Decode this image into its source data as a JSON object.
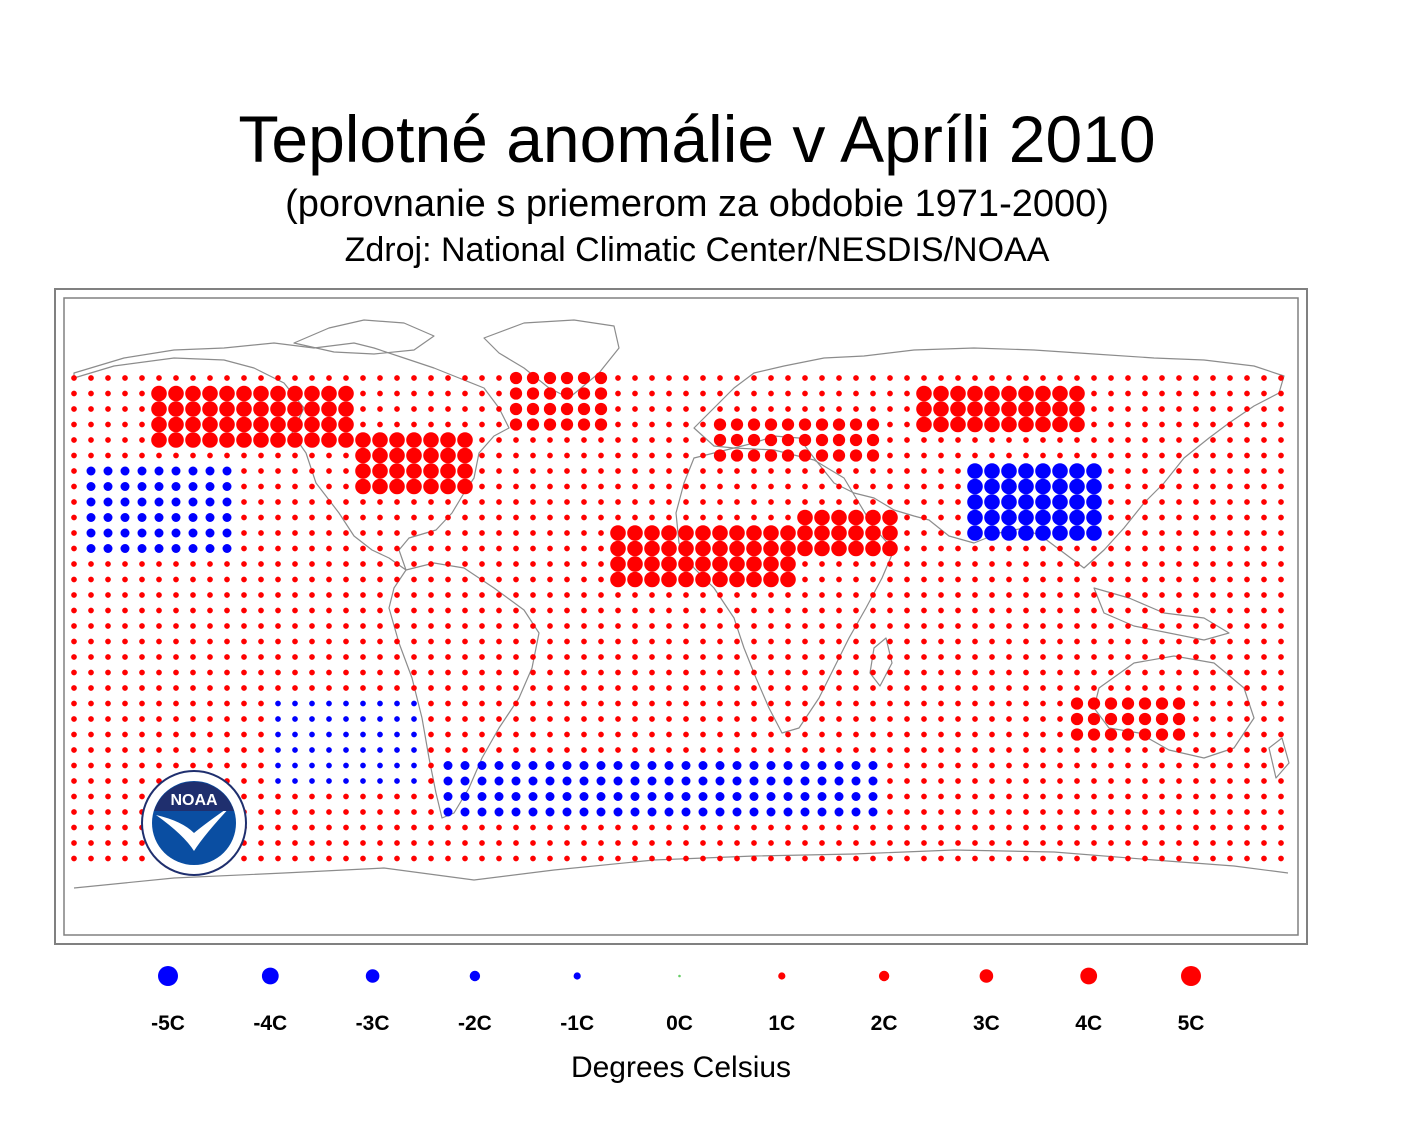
{
  "header": {
    "title": "Teplotné anomálie v Apríli 2010",
    "subtitle": "(porovnanie s priemerom za obdobie 1971-2000)",
    "source": "Zdroj: National Climatic Center/NESDIS/NOAA"
  },
  "logo": {
    "text": "NOAA"
  },
  "legend": {
    "items": [
      {
        "label": "-5C",
        "value": -5
      },
      {
        "label": "-4C",
        "value": -4
      },
      {
        "label": "-3C",
        "value": -3
      },
      {
        "label": "-2C",
        "value": -2
      },
      {
        "label": "-1C",
        "value": -1
      },
      {
        "label": "0C",
        "value": 0
      },
      {
        "label": "1C",
        "value": 1
      },
      {
        "label": "2C",
        "value": 2
      },
      {
        "label": "3C",
        "value": 3
      },
      {
        "label": "4C",
        "value": 4
      },
      {
        "label": "5C",
        "value": 5
      }
    ],
    "xlabel": "Degrees Celsius"
  },
  "colors": {
    "warm": "#ff0000",
    "cold": "#0000ff",
    "neutral": "#66cc66",
    "coastline": "#8c8c8c",
    "frame": "#808080",
    "noaa_blue": "#0a4ea2",
    "noaa_navy": "#1f2f6e"
  },
  "map_data": {
    "grid": {
      "lon_start": -177.5,
      "lon_step": 5,
      "lat_start": 82.5,
      "lat_step": -5,
      "lon_count": 72,
      "lat_count": 32
    },
    "background": {
      "value": 1
    },
    "regions": [
      {
        "name": "canada-north",
        "lon": [
          -155,
          -95
        ],
        "lat": [
          60,
          78
        ],
        "value": 4
      },
      {
        "name": "canada-east",
        "lon": [
          -95,
          -60
        ],
        "lat": [
          45,
          65
        ],
        "value": 4
      },
      {
        "name": "greenland",
        "lon": [
          -50,
          -20
        ],
        "lat": [
          65,
          85
        ],
        "value": 3
      },
      {
        "name": "northern-europe",
        "lon": [
          10,
          60
        ],
        "lat": [
          55,
          72
        ],
        "value": 3
      },
      {
        "name": "siberia-north",
        "lon": [
          70,
          120
        ],
        "lat": [
          65,
          80
        ],
        "value": 4
      },
      {
        "name": "north-africa",
        "lon": [
          -20,
          35
        ],
        "lat": [
          15,
          35
        ],
        "value": 4
      },
      {
        "name": "middle-east",
        "lon": [
          35,
          65
        ],
        "lat": [
          25,
          40
        ],
        "value": 4
      },
      {
        "name": "australia",
        "lon": [
          115,
          150
        ],
        "lat": [
          -35,
          -20
        ],
        "value": 3
      },
      {
        "name": "central-asia-cold",
        "lon": [
          85,
          125
        ],
        "lat": [
          30,
          55
        ],
        "value": -4
      },
      {
        "name": "pacific-cold",
        "lon": [
          -175,
          -130
        ],
        "lat": [
          25,
          55
        ],
        "value": -2
      },
      {
        "name": "south-atlantic-cold",
        "lon": [
          -70,
          60
        ],
        "lat": [
          -62,
          -42
        ],
        "value": -2
      },
      {
        "name": "southeast-pacific-cold",
        "lon": [
          -120,
          -75
        ],
        "lat": [
          -50,
          -20
        ],
        "value": -1
      }
    ]
  }
}
